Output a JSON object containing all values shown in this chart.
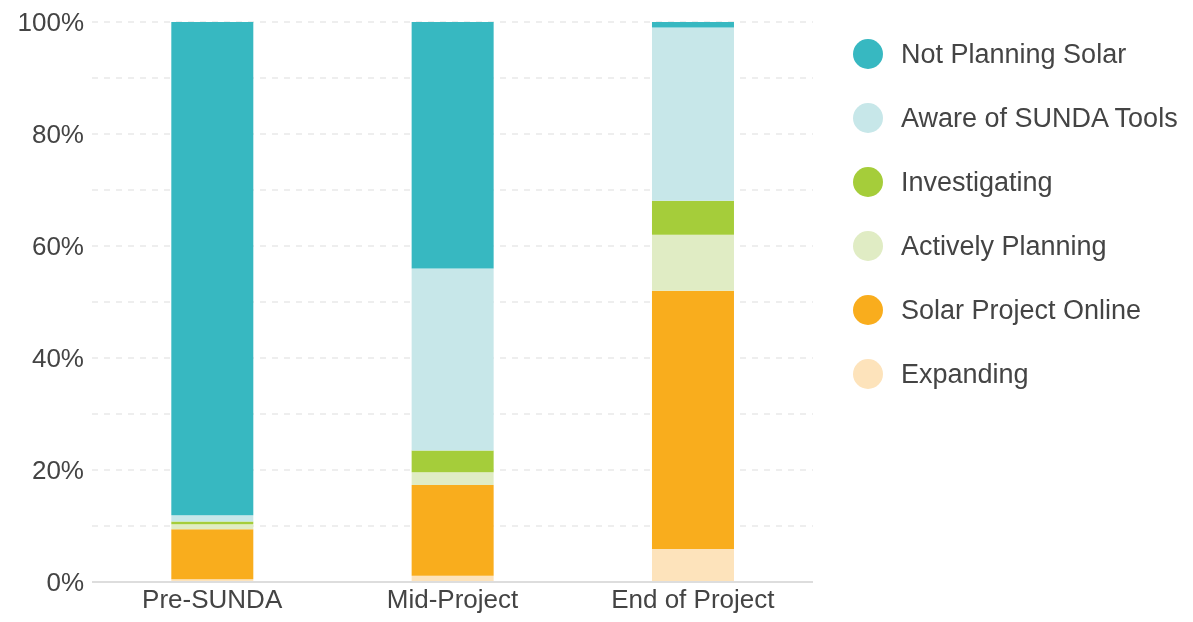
{
  "chart_data": {
    "type": "bar",
    "stacked": true,
    "categories": [
      "Pre-SUNDA",
      "Mid-Project",
      "End of Project"
    ],
    "series": [
      {
        "name": "Expanding",
        "color": "#fde3bb",
        "values": [
          0.5,
          1.1,
          5.9
        ]
      },
      {
        "name": "Solar Project Online",
        "color": "#f9ad1d",
        "values": [
          8.9,
          16.2,
          46.1
        ]
      },
      {
        "name": "Actively Planning",
        "color": "#e0ecc4",
        "values": [
          0.9,
          2.3,
          10.0
        ]
      },
      {
        "name": "Investigating",
        "color": "#a5cd3a",
        "values": [
          0.5,
          3.9,
          6.1
        ]
      },
      {
        "name": "Aware of SUNDA Tools",
        "color": "#c7e7e9",
        "values": [
          1.1,
          32.5,
          30.9
        ]
      },
      {
        "name": "Not Planning Solar",
        "color": "#37b8c1",
        "values": [
          88.1,
          44.0,
          1.0
        ]
      }
    ],
    "ylim": [
      0,
      100
    ],
    "yticks": [
      {
        "value": 0,
        "label": "0%"
      },
      {
        "value": 10,
        "label": null
      },
      {
        "value": 20,
        "label": "20%"
      },
      {
        "value": 30,
        "label": null
      },
      {
        "value": 40,
        "label": "40%"
      },
      {
        "value": 50,
        "label": null
      },
      {
        "value": 60,
        "label": "60%"
      },
      {
        "value": 70,
        "label": null
      },
      {
        "value": 80,
        "label": "80%"
      },
      {
        "value": 90,
        "label": null
      },
      {
        "value": 100,
        "label": "100%"
      }
    ],
    "grid": "y",
    "legend": "right"
  }
}
